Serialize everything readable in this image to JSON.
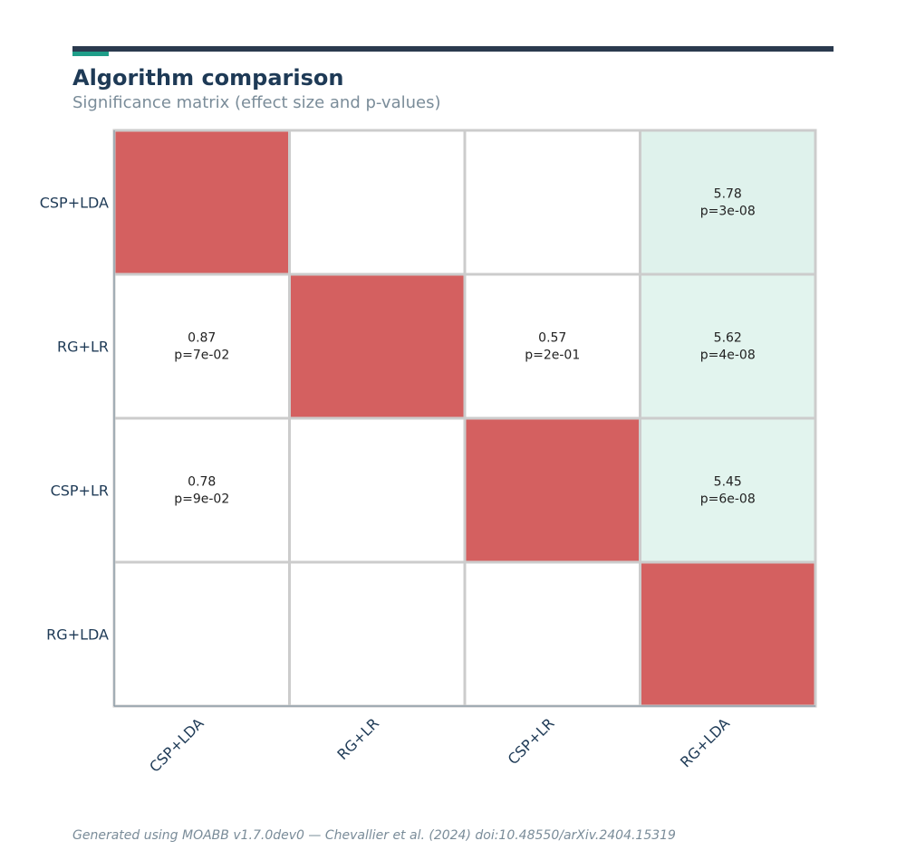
{
  "header": {
    "title": "Algorithm comparison",
    "subtitle": "Significance matrix (effect size and p-values)"
  },
  "footer": {
    "text": "Generated using MOABB v1.7.0dev0 — Chevallier et al. (2024) doi:10.48550/arXiv.2404.15319"
  },
  "colors": {
    "diagonal": "#d46060",
    "significant": "#e2f4ee",
    "significant_strong": "#dff2ec",
    "empty": "#ffffff",
    "grid": "#cccccc",
    "axis": "#8899a6",
    "label": "#1e3a56",
    "cell_text": "#222222",
    "topbar": "#2b3a4e",
    "accent": "#1f9e89"
  },
  "chart_data": {
    "type": "heatmap",
    "rows": [
      "CSP+LDA",
      "RG+LR",
      "CSP+LR",
      "RG+LDA"
    ],
    "columns": [
      "CSP+LDA",
      "RG+LR",
      "CSP+LR",
      "RG+LDA"
    ],
    "cells": [
      {
        "row": 0,
        "col": 3,
        "effect": "5.78",
        "p": "p=3e-08"
      },
      {
        "row": 1,
        "col": 0,
        "effect": "0.87",
        "p": "p=7e-02"
      },
      {
        "row": 1,
        "col": 2,
        "effect": "0.57",
        "p": "p=2e-01"
      },
      {
        "row": 1,
        "col": 3,
        "effect": "5.62",
        "p": "p=4e-08"
      },
      {
        "row": 2,
        "col": 0,
        "effect": "0.78",
        "p": "p=9e-02"
      },
      {
        "row": 2,
        "col": 3,
        "effect": "5.45",
        "p": "p=6e-08"
      }
    ],
    "significant_cells": [
      [
        0,
        3
      ],
      [
        1,
        3
      ],
      [
        2,
        3
      ]
    ],
    "diagonal": true,
    "legend": "none"
  }
}
